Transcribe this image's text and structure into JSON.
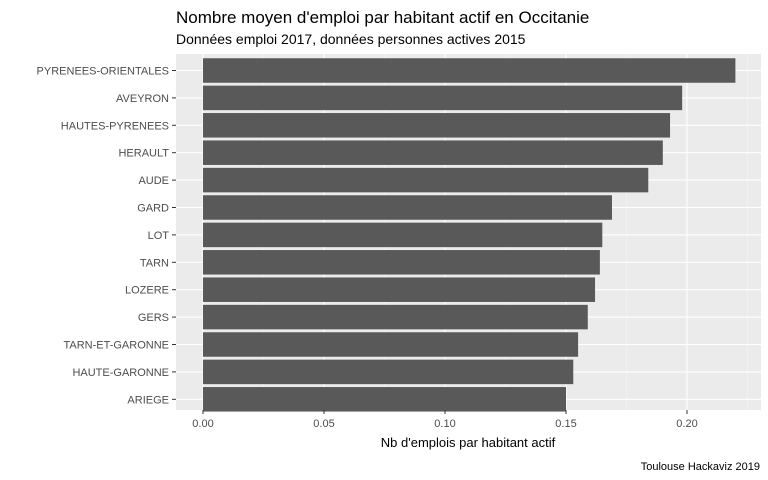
{
  "chart_data": {
    "type": "bar",
    "orientation": "horizontal",
    "title": "Nombre moyen d'emploi par habitant actif en Occitanie",
    "subtitle": "Données emploi 2017, données personnes actives 2015",
    "xlabel": "Nb d'emplois par habitant actif",
    "ylabel": "",
    "caption": "Toulouse Hackaviz 2019",
    "xlim": [
      0,
      0.2305
    ],
    "x_ticks": [
      0.0,
      0.05,
      0.1,
      0.15,
      0.2
    ],
    "x_tick_labels": [
      "0.00",
      "0.05",
      "0.10",
      "0.15",
      "0.20"
    ],
    "grid": true,
    "categories": [
      "PYRENEES-ORIENTALES",
      "AVEYRON",
      "HAUTES-PYRENEES",
      "HERAULT",
      "AUDE",
      "GARD",
      "LOT",
      "TARN",
      "LOZERE",
      "GERS",
      "TARN-ET-GARONNE",
      "HAUTE-GARONNE",
      "ARIEGE"
    ],
    "values": [
      0.22,
      0.198,
      0.193,
      0.19,
      0.184,
      0.169,
      0.165,
      0.164,
      0.162,
      0.159,
      0.155,
      0.153,
      0.15
    ],
    "colors": {
      "bar": "#595959",
      "panel": "#ebebeb",
      "grid_major": "#ffffff",
      "grid_minor": "#f5f5f5"
    }
  }
}
